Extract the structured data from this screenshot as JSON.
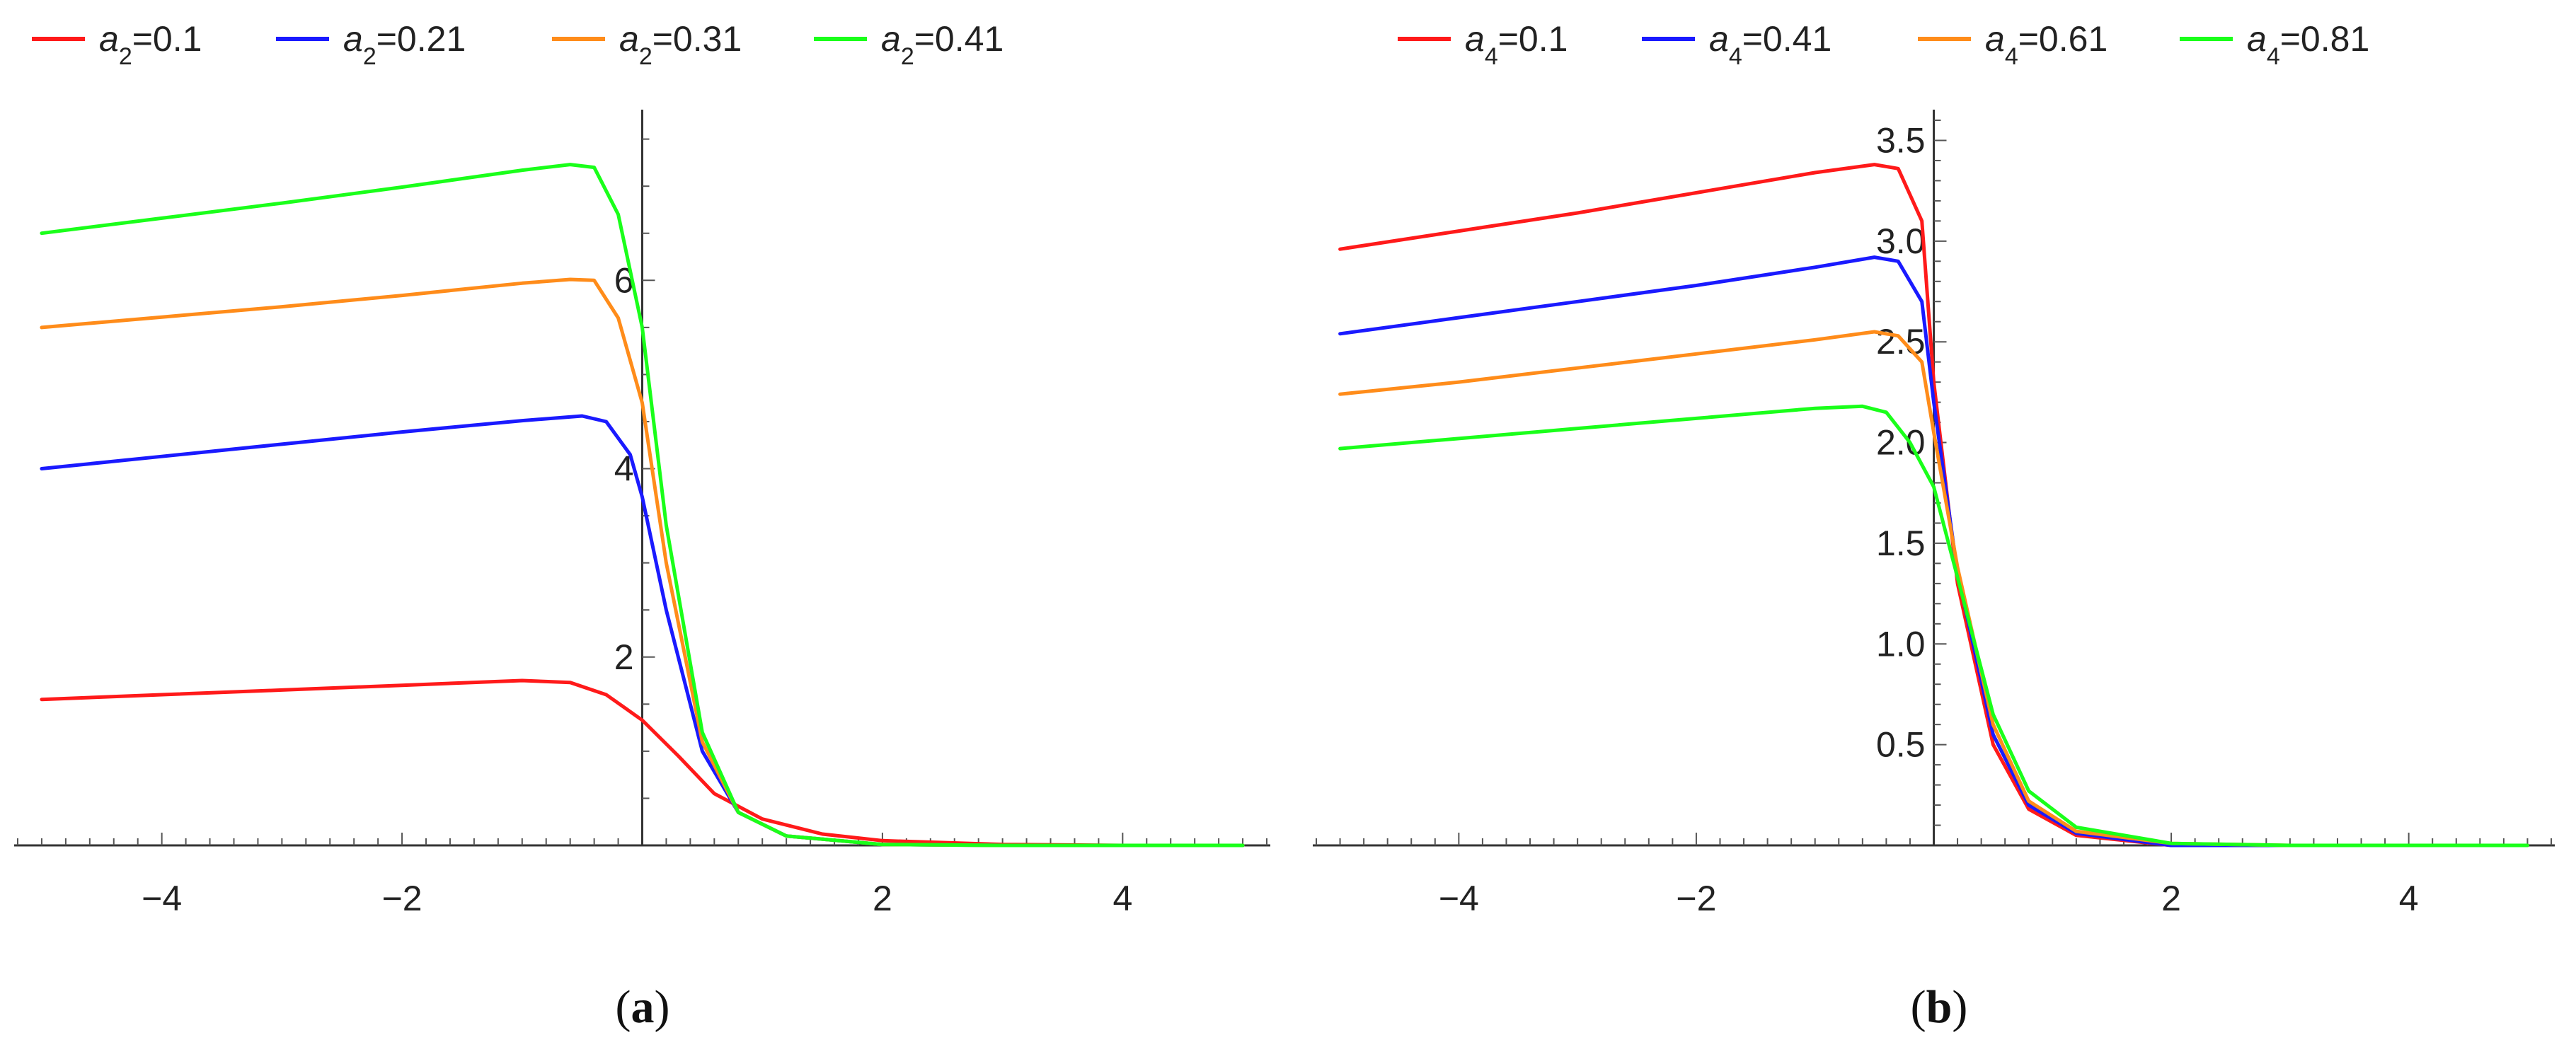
{
  "chart_data": [
    {
      "type": "line",
      "panel_label": "(a)",
      "panel_letter": "a",
      "xlim": [
        -5.2,
        5.2
      ],
      "ylim": [
        0,
        7.7
      ],
      "x_ticks": [
        -4,
        -2,
        2,
        4
      ],
      "x_tick_labels": [
        "−4",
        "−2",
        "2",
        "4"
      ],
      "y_ticks": [
        2,
        4,
        6
      ],
      "y_tick_labels": [
        "2",
        "4",
        "6"
      ],
      "grid": false,
      "legend_position": "top",
      "series": [
        {
          "name": "a2=0.1",
          "sub": "2",
          "value": "0.1",
          "color": "#ff1a1a",
          "x": [
            -5,
            -4,
            -3,
            -2,
            -1,
            -0.6,
            -0.3,
            0,
            0.3,
            0.6,
            1,
            1.5,
            2,
            3,
            4,
            5
          ],
          "y": [
            1.55,
            1.6,
            1.65,
            1.7,
            1.75,
            1.73,
            1.6,
            1.33,
            0.95,
            0.55,
            0.28,
            0.12,
            0.05,
            0.01,
            0.0,
            0.0
          ]
        },
        {
          "name": "a2=0.21",
          "sub": "2",
          "value": "0.21",
          "color": "#1a1aff",
          "x": [
            -5,
            -4,
            -3,
            -2,
            -1,
            -0.5,
            -0.3,
            -0.1,
            0,
            0.2,
            0.5,
            0.8,
            1.2,
            2,
            3,
            5
          ],
          "y": [
            4.0,
            4.13,
            4.26,
            4.39,
            4.51,
            4.56,
            4.5,
            4.15,
            3.7,
            2.5,
            1.0,
            0.35,
            0.1,
            0.01,
            0.0,
            0.0
          ]
        },
        {
          "name": "a2=0.31",
          "sub": "2",
          "value": "0.31",
          "color": "#ff8c1a",
          "x": [
            -5,
            -4,
            -3,
            -2,
            -1,
            -0.6,
            -0.4,
            -0.2,
            0,
            0.2,
            0.5,
            0.8,
            1.2,
            2,
            3,
            5
          ],
          "y": [
            5.5,
            5.61,
            5.72,
            5.84,
            5.97,
            6.01,
            6.0,
            5.6,
            4.7,
            3.0,
            1.1,
            0.35,
            0.1,
            0.01,
            0.0,
            0.0
          ]
        },
        {
          "name": "a2=0.41",
          "sub": "2",
          "value": "0.41",
          "color": "#1aff1a",
          "x": [
            -5,
            -4,
            -3,
            -2,
            -1,
            -0.6,
            -0.4,
            -0.2,
            0,
            0.2,
            0.5,
            0.8,
            1.2,
            2,
            3,
            5
          ],
          "y": [
            6.5,
            6.66,
            6.82,
            6.99,
            7.17,
            7.23,
            7.2,
            6.7,
            5.5,
            3.4,
            1.2,
            0.35,
            0.1,
            0.01,
            0.0,
            0.0
          ]
        }
      ]
    },
    {
      "type": "line",
      "panel_label": "(b)",
      "panel_letter": "b",
      "xlim": [
        -5.2,
        5.2
      ],
      "ylim": [
        0,
        3.6
      ],
      "x_ticks": [
        -4,
        -2,
        2,
        4
      ],
      "x_tick_labels": [
        "−4",
        "−2",
        "2",
        "4"
      ],
      "y_ticks": [
        0.5,
        1.0,
        1.5,
        2.0,
        2.5,
        3.0,
        3.5
      ],
      "y_tick_labels": [
        "0.5",
        "1.0",
        "1.5",
        "2.0",
        "2.5",
        "3.0",
        "3.5"
      ],
      "grid": false,
      "legend_position": "top",
      "series": [
        {
          "name": "a4=0.1",
          "sub": "4",
          "value": "0.1",
          "color": "#ff1a1a",
          "x": [
            -5,
            -4,
            -3,
            -2,
            -1,
            -0.5,
            -0.3,
            -0.1,
            0,
            0.2,
            0.5,
            0.8,
            1.2,
            2,
            3,
            5
          ],
          "y": [
            2.96,
            3.05,
            3.14,
            3.24,
            3.34,
            3.38,
            3.36,
            3.1,
            2.3,
            1.3,
            0.5,
            0.18,
            0.05,
            0.0,
            0.0,
            0.0
          ]
        },
        {
          "name": "a4=0.41",
          "sub": "4",
          "value": "0.41",
          "color": "#1a1aff",
          "x": [
            -5,
            -4,
            -3,
            -2,
            -1,
            -0.5,
            -0.3,
            -0.1,
            0,
            0.2,
            0.5,
            0.8,
            1.2,
            2,
            3,
            5
          ],
          "y": [
            2.54,
            2.62,
            2.7,
            2.78,
            2.87,
            2.92,
            2.9,
            2.7,
            2.2,
            1.35,
            0.55,
            0.2,
            0.06,
            0.0,
            0.0,
            0.0
          ]
        },
        {
          "name": "a4=0.61",
          "sub": "4",
          "value": "0.61",
          "color": "#ff8c1a",
          "x": [
            -5,
            -4,
            -3,
            -2,
            -1,
            -0.5,
            -0.3,
            -0.1,
            0,
            0.2,
            0.5,
            0.8,
            1.2,
            2,
            3,
            5
          ],
          "y": [
            2.24,
            2.3,
            2.37,
            2.44,
            2.51,
            2.55,
            2.53,
            2.4,
            2.05,
            1.38,
            0.6,
            0.22,
            0.07,
            0.01,
            0.0,
            0.0
          ]
        },
        {
          "name": "a4=0.81",
          "sub": "4",
          "value": "0.81",
          "color": "#1aff1a",
          "x": [
            -5,
            -4,
            -3,
            -2,
            -1,
            -0.6,
            -0.4,
            -0.2,
            0,
            0.2,
            0.5,
            0.8,
            1.2,
            2,
            3,
            5
          ],
          "y": [
            1.97,
            2.02,
            2.07,
            2.12,
            2.17,
            2.18,
            2.15,
            2.0,
            1.78,
            1.33,
            0.65,
            0.27,
            0.09,
            0.01,
            0.0,
            0.0
          ]
        }
      ]
    }
  ]
}
